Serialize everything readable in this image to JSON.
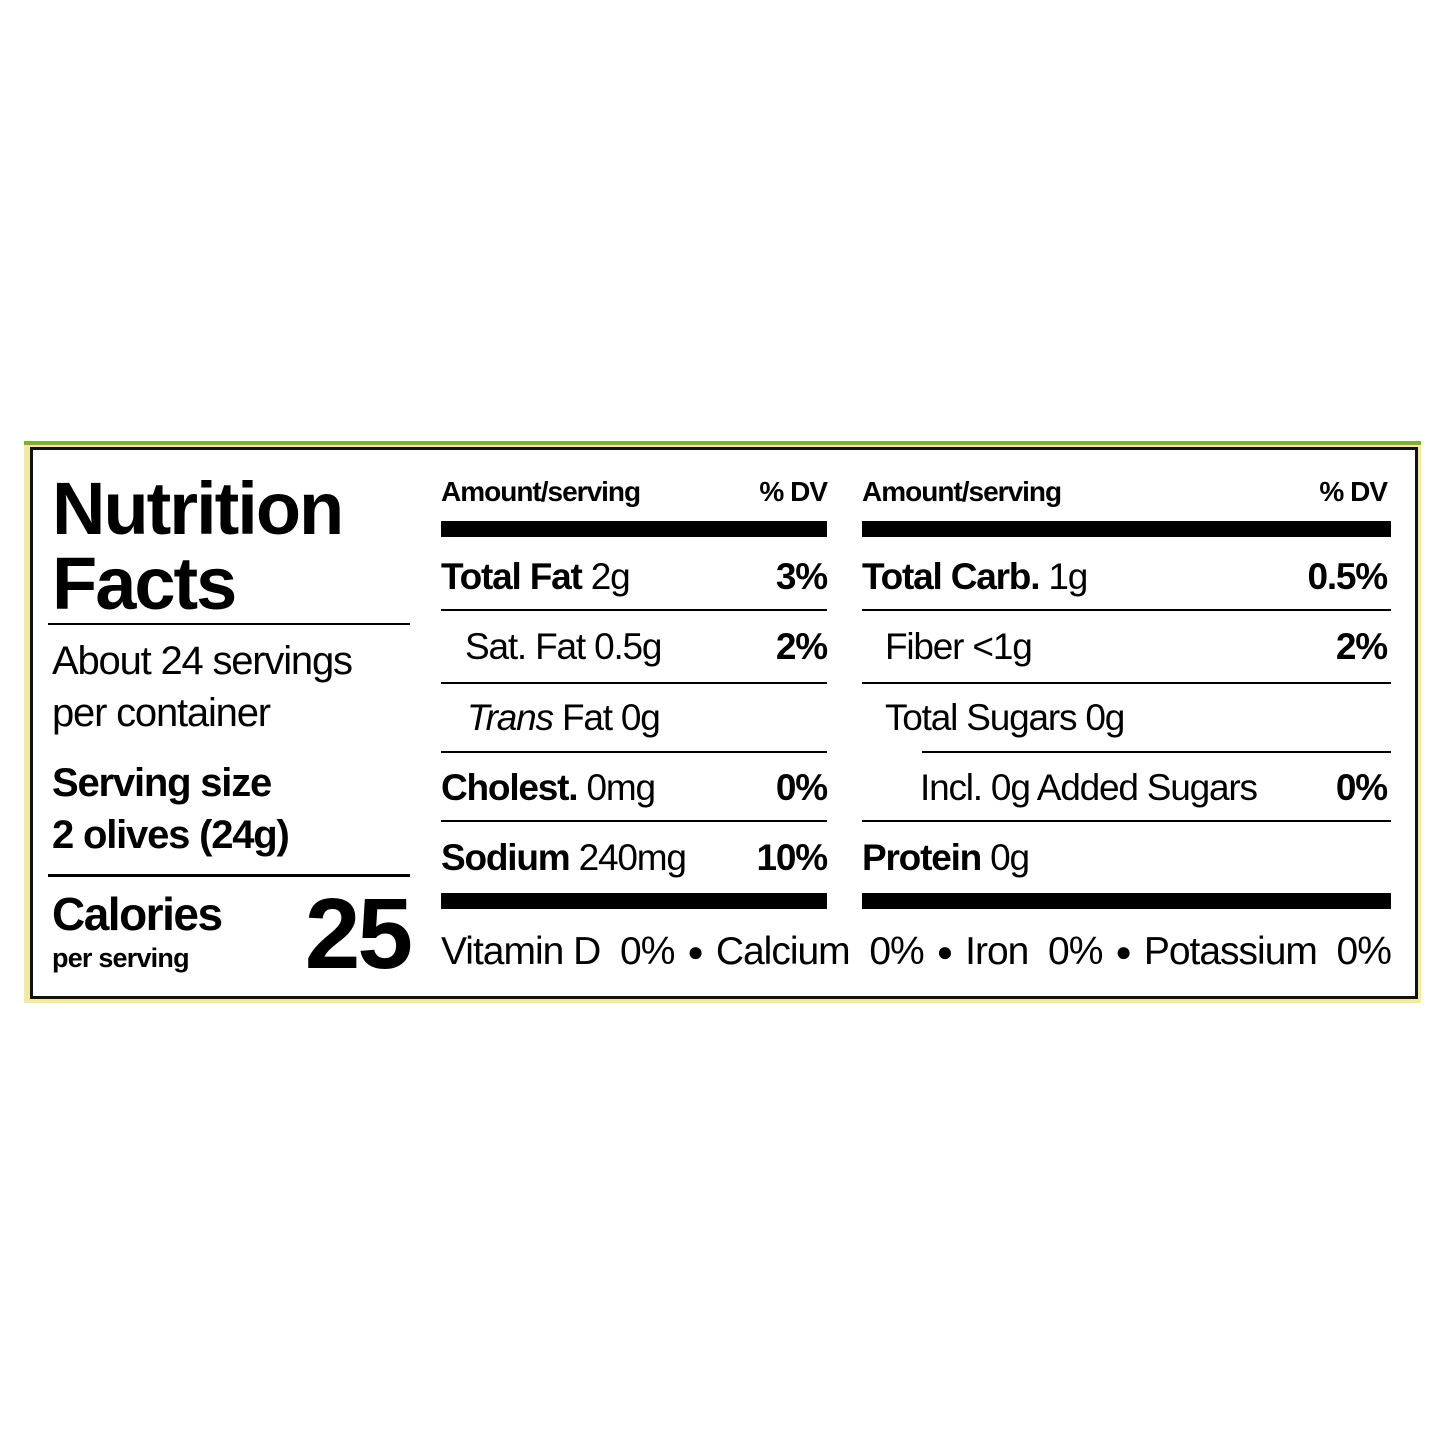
{
  "colors": {
    "top_border": "#7fae3a",
    "side_border": "#f3e9a0",
    "ink": "#000000"
  },
  "title_line1": "Nutrition",
  "title_line2": "Facts",
  "servings_line1": "About 24 servings",
  "servings_line2": "per container",
  "serving_size_label": "Serving size",
  "serving_size_value": "2 olives (24g)",
  "calories_label": "Calories",
  "calories_sub": "per serving",
  "calories_value": "25",
  "left_table": {
    "header_amount": "Amount/serving",
    "header_dv": "% DV",
    "rows": [
      {
        "name": "Total Fat",
        "amount": "2g",
        "dv": "3%"
      },
      {
        "name": "Sat. Fat",
        "amount": "0.5g",
        "dv": "2%"
      },
      {
        "name": "Trans",
        "amount": "Fat 0g",
        "dv": ""
      },
      {
        "name": "Cholest.",
        "amount": "0mg",
        "dv": "0%"
      },
      {
        "name": "Sodium",
        "amount": "240mg",
        "dv": "10%"
      }
    ]
  },
  "right_table": {
    "header_amount": "Amount/serving",
    "header_dv": "% DV",
    "rows": [
      {
        "name": "Total Carb.",
        "amount": "1g",
        "dv": "0.5%"
      },
      {
        "name": "Fiber",
        "amount": "<1g",
        "dv": "2%"
      },
      {
        "name": "Total Sugars",
        "amount": "0g",
        "dv": ""
      },
      {
        "name": "Incl. 0g Added Sugars",
        "amount": "",
        "dv": "0%"
      },
      {
        "name": "Protein",
        "amount": "0g",
        "dv": ""
      }
    ]
  },
  "vitamins": [
    {
      "text": "Vitamin D  0%"
    },
    {
      "text": "Calcium  0%"
    },
    {
      "text": "Iron  0%"
    },
    {
      "text": "Potassium  0%"
    }
  ],
  "bullet": "●"
}
